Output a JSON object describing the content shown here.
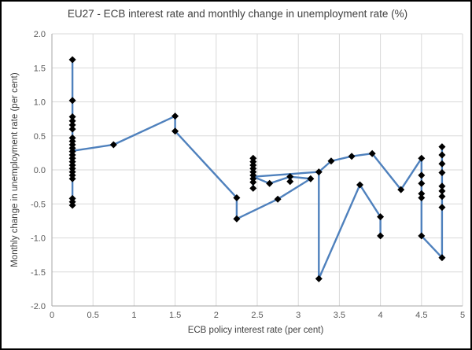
{
  "page": {
    "background": "#ffffff",
    "frame_color": "#000000"
  },
  "chart_data": {
    "type": "scatter",
    "subtype": "connected-scatter-with-markers",
    "title": "EU27 - ECB interest rate and monthly change in unemployment rate (%)",
    "xlabel": "ECB policy interest rate (per cent)",
    "ylabel": "Monthly change in unemployment rate (per cent)",
    "xlim": [
      0,
      5
    ],
    "ylim": [
      -2,
      2
    ],
    "grid": true,
    "legend": "none",
    "x_ticks": [
      "0",
      "0.5",
      "1",
      "1.5",
      "2",
      "2.5",
      "3",
      "3.5",
      "4",
      "4.5",
      "5"
    ],
    "x_tick_values": [
      0,
      0.5,
      1,
      1.5,
      2,
      2.5,
      3,
      3.5,
      4,
      4.5,
      5
    ],
    "y_ticks": [
      "2.0",
      "1.5",
      "1.0",
      "0.5",
      "0.0",
      "-0.5",
      "-1.0",
      "-1.5",
      "-2.0"
    ],
    "y_tick_values": [
      2,
      1.5,
      1,
      0.5,
      0,
      -0.5,
      -1,
      -1.5,
      -2
    ],
    "line_color": "#4f81bd",
    "marker_color": "#000000",
    "grid_color": "#d9d9d9",
    "axis_line_color": "#a6a6a6",
    "series": [
      {
        "name": "rate-unemployment-path",
        "points": [
          [
            0.25,
            1.62
          ],
          [
            0.25,
            -0.52
          ],
          [
            0.25,
            0.28
          ],
          [
            0.75,
            0.37
          ],
          [
            1.5,
            0.79
          ],
          [
            1.5,
            0.57
          ],
          [
            2.25,
            -0.41
          ],
          [
            2.25,
            -0.72
          ],
          [
            2.75,
            -0.43
          ],
          [
            3.15,
            -0.13
          ],
          [
            2.9,
            -0.1
          ],
          [
            2.65,
            -0.2
          ],
          [
            2.45,
            -0.1
          ],
          [
            2.45,
            0.17
          ],
          [
            2.45,
            -0.27
          ],
          [
            2.45,
            -0.1
          ],
          [
            3.25,
            -0.03
          ],
          [
            3.4,
            0.13
          ],
          [
            3.65,
            0.2
          ],
          [
            3.9,
            0.24
          ],
          [
            4.25,
            -0.29
          ],
          [
            4.5,
            0.17
          ],
          [
            4.5,
            -0.97
          ],
          [
            4.75,
            -1.29
          ],
          [
            4.75,
            0.34
          ]
        ]
      },
      {
        "name": "drop-branch",
        "points": [
          [
            3.25,
            -0.03
          ],
          [
            3.25,
            -1.6
          ],
          [
            3.75,
            -0.22
          ],
          [
            4.0,
            -0.69
          ],
          [
            4.0,
            -0.97
          ]
        ]
      }
    ],
    "markers": [
      [
        0.25,
        1.62
      ],
      [
        0.25,
        1.02
      ],
      [
        0.25,
        0.78
      ],
      [
        0.25,
        0.72
      ],
      [
        0.25,
        0.66
      ],
      [
        0.25,
        0.6
      ],
      [
        0.25,
        0.47
      ],
      [
        0.25,
        0.42
      ],
      [
        0.25,
        0.37
      ],
      [
        0.25,
        0.32
      ],
      [
        0.25,
        0.27
      ],
      [
        0.25,
        0.22
      ],
      [
        0.25,
        0.17
      ],
      [
        0.25,
        0.12
      ],
      [
        0.25,
        0.07
      ],
      [
        0.25,
        0.02
      ],
      [
        0.25,
        -0.03
      ],
      [
        0.25,
        -0.08
      ],
      [
        0.25,
        -0.13
      ],
      [
        0.25,
        -0.42
      ],
      [
        0.25,
        -0.47
      ],
      [
        0.25,
        -0.52
      ],
      [
        0.75,
        0.37
      ],
      [
        1.5,
        0.79
      ],
      [
        1.5,
        0.57
      ],
      [
        2.25,
        -0.41
      ],
      [
        2.25,
        -0.72
      ],
      [
        2.45,
        0.17
      ],
      [
        2.45,
        0.12
      ],
      [
        2.45,
        0.07
      ],
      [
        2.45,
        0.02
      ],
      [
        2.45,
        -0.03
      ],
      [
        2.45,
        -0.08
      ],
      [
        2.45,
        -0.13
      ],
      [
        2.45,
        -0.18
      ],
      [
        2.45,
        -0.27
      ],
      [
        2.65,
        -0.2
      ],
      [
        2.75,
        -0.43
      ],
      [
        2.9,
        -0.1
      ],
      [
        2.9,
        -0.17
      ],
      [
        3.15,
        -0.13
      ],
      [
        3.25,
        -0.03
      ],
      [
        3.25,
        -1.6
      ],
      [
        3.4,
        0.13
      ],
      [
        3.65,
        0.2
      ],
      [
        3.75,
        -0.22
      ],
      [
        3.9,
        0.24
      ],
      [
        4.0,
        -0.69
      ],
      [
        4.0,
        -0.97
      ],
      [
        4.25,
        -0.29
      ],
      [
        4.5,
        0.17
      ],
      [
        4.5,
        -0.08
      ],
      [
        4.5,
        -0.2
      ],
      [
        4.5,
        -0.35
      ],
      [
        4.5,
        -0.41
      ],
      [
        4.5,
        -0.97
      ],
      [
        4.75,
        0.34
      ],
      [
        4.75,
        0.22
      ],
      [
        4.75,
        0.09
      ],
      [
        4.75,
        -0.04
      ],
      [
        4.75,
        -0.24
      ],
      [
        4.75,
        -0.31
      ],
      [
        4.75,
        -0.39
      ],
      [
        4.75,
        -0.55
      ],
      [
        4.75,
        -1.29
      ]
    ]
  }
}
